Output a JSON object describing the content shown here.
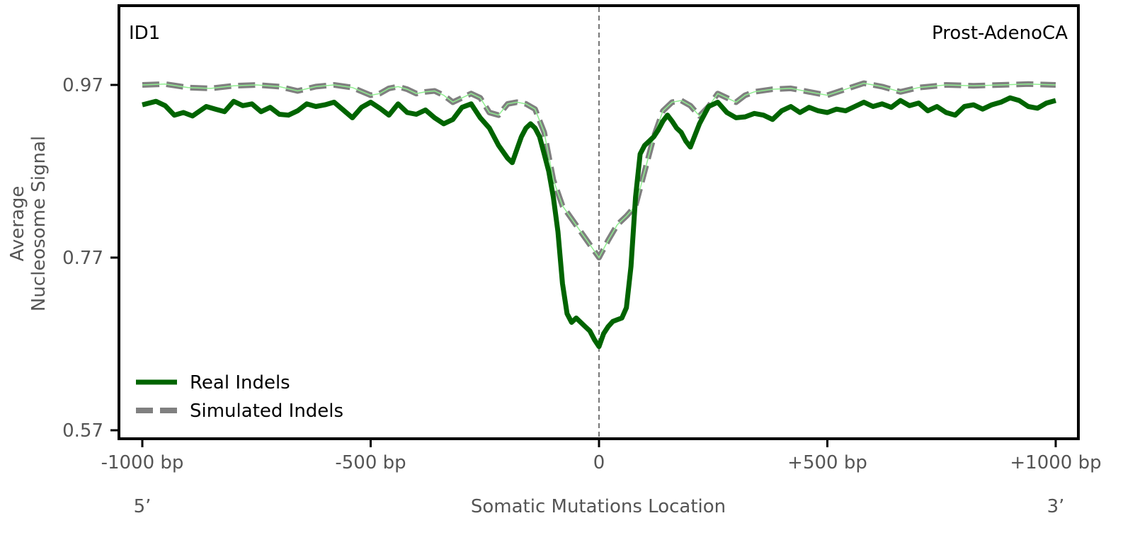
{
  "chart_data": {
    "type": "line",
    "title": "",
    "panel_label_left": "ID1",
    "panel_label_right": "Prost-AdenoCA",
    "xlabel": "Somatic Mutations Location",
    "ylabel_line1": "Average",
    "ylabel_line2": "Nucleosome Signal",
    "xlim": [
      -1000,
      1000
    ],
    "ylim": [
      0.57,
      1.05
    ],
    "x_ticks": [
      {
        "value": -1000,
        "label": "-1000 bp"
      },
      {
        "value": -500,
        "label": "-500 bp"
      },
      {
        "value": 0,
        "label": "0"
      },
      {
        "value": 500,
        "label": "+500 bp"
      },
      {
        "value": 1000,
        "label": "+1000 bp"
      }
    ],
    "y_ticks": [
      {
        "value": 0.57,
        "label": "0.57"
      },
      {
        "value": 0.77,
        "label": "0.77"
      },
      {
        "value": 0.97,
        "label": "0.97"
      }
    ],
    "strand_labels": {
      "left": "5’",
      "right": "3’"
    },
    "vline_x": 0,
    "grid": false,
    "legend_position": "lower-left",
    "colors": {
      "real": "#006400",
      "simulated": "#808080",
      "simulated_center": "#90ee90",
      "vline": "#777777"
    },
    "series": [
      {
        "name": "Real Indels",
        "style": "solid",
        "x": [
          -1000,
          -970,
          -950,
          -930,
          -910,
          -890,
          -860,
          -840,
          -820,
          -800,
          -780,
          -760,
          -740,
          -720,
          -700,
          -680,
          -660,
          -640,
          -620,
          -600,
          -580,
          -560,
          -540,
          -520,
          -500,
          -480,
          -460,
          -440,
          -420,
          -400,
          -380,
          -360,
          -340,
          -320,
          -300,
          -280,
          -260,
          -240,
          -220,
          -200,
          -190,
          -180,
          -170,
          -160,
          -150,
          -140,
          -130,
          -120,
          -110,
          -100,
          -90,
          -80,
          -70,
          -60,
          -50,
          -40,
          -30,
          -20,
          -10,
          0,
          10,
          20,
          30,
          40,
          50,
          60,
          70,
          80,
          90,
          100,
          110,
          120,
          130,
          140,
          150,
          160,
          170,
          180,
          190,
          200,
          220,
          240,
          260,
          280,
          300,
          320,
          340,
          360,
          380,
          400,
          420,
          440,
          460,
          480,
          500,
          520,
          540,
          560,
          580,
          600,
          620,
          640,
          660,
          680,
          700,
          720,
          740,
          760,
          780,
          800,
          820,
          840,
          860,
          880,
          900,
          920,
          940,
          960,
          980,
          1000
        ],
        "y": [
          0.947,
          0.951,
          0.946,
          0.935,
          0.938,
          0.934,
          0.945,
          0.942,
          0.939,
          0.951,
          0.946,
          0.948,
          0.939,
          0.944,
          0.936,
          0.935,
          0.94,
          0.948,
          0.945,
          0.947,
          0.95,
          0.941,
          0.932,
          0.944,
          0.95,
          0.943,
          0.935,
          0.948,
          0.938,
          0.936,
          0.941,
          0.932,
          0.925,
          0.93,
          0.944,
          0.948,
          0.932,
          0.92,
          0.9,
          0.885,
          0.88,
          0.895,
          0.91,
          0.92,
          0.925,
          0.92,
          0.91,
          0.89,
          0.87,
          0.84,
          0.8,
          0.74,
          0.705,
          0.695,
          0.7,
          0.695,
          0.69,
          0.685,
          0.675,
          0.667,
          0.682,
          0.69,
          0.696,
          0.698,
          0.7,
          0.712,
          0.76,
          0.84,
          0.89,
          0.9,
          0.905,
          0.91,
          0.918,
          0.928,
          0.935,
          0.928,
          0.92,
          0.915,
          0.905,
          0.898,
          0.925,
          0.945,
          0.95,
          0.938,
          0.932,
          0.933,
          0.937,
          0.935,
          0.93,
          0.94,
          0.945,
          0.938,
          0.944,
          0.94,
          0.938,
          0.942,
          0.94,
          0.945,
          0.95,
          0.945,
          0.948,
          0.944,
          0.952,
          0.946,
          0.949,
          0.94,
          0.945,
          0.938,
          0.935,
          0.945,
          0.947,
          0.942,
          0.947,
          0.95,
          0.955,
          0.952,
          0.945,
          0.943,
          0.949,
          0.952
        ]
      },
      {
        "name": "Simulated Indels",
        "style": "dashed",
        "x": [
          -1000,
          -950,
          -900,
          -850,
          -800,
          -750,
          -700,
          -660,
          -620,
          -580,
          -540,
          -500,
          -480,
          -460,
          -440,
          -420,
          -400,
          -380,
          -360,
          -340,
          -320,
          -300,
          -280,
          -260,
          -240,
          -220,
          -200,
          -180,
          -160,
          -140,
          -120,
          -100,
          -80,
          -60,
          -40,
          -20,
          0,
          20,
          40,
          60,
          80,
          100,
          120,
          140,
          160,
          180,
          200,
          220,
          240,
          260,
          280,
          300,
          320,
          340,
          380,
          420,
          460,
          500,
          540,
          580,
          620,
          660,
          700,
          760,
          820,
          880,
          940,
          1000
        ],
        "y": [
          0.97,
          0.971,
          0.967,
          0.966,
          0.969,
          0.97,
          0.968,
          0.963,
          0.968,
          0.97,
          0.967,
          0.958,
          0.96,
          0.966,
          0.968,
          0.965,
          0.96,
          0.962,
          0.963,
          0.958,
          0.95,
          0.955,
          0.96,
          0.955,
          0.938,
          0.935,
          0.948,
          0.95,
          0.948,
          0.942,
          0.915,
          0.86,
          0.83,
          0.815,
          0.8,
          0.785,
          0.77,
          0.79,
          0.808,
          0.818,
          0.83,
          0.87,
          0.91,
          0.94,
          0.95,
          0.952,
          0.946,
          0.934,
          0.945,
          0.96,
          0.955,
          0.95,
          0.958,
          0.962,
          0.965,
          0.966,
          0.962,
          0.958,
          0.965,
          0.972,
          0.968,
          0.962,
          0.967,
          0.97,
          0.969,
          0.97,
          0.971,
          0.97
        ]
      }
    ]
  }
}
